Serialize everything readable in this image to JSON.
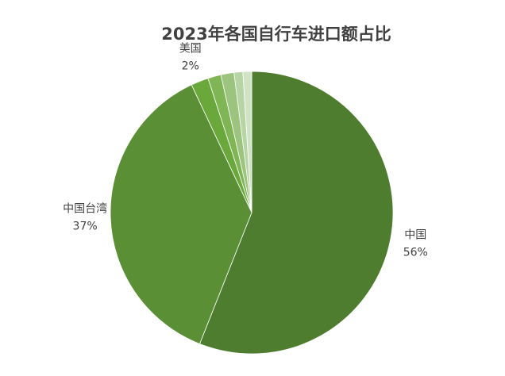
{
  "chart_data": {
    "type": "pie",
    "title": "2023年各国自行车进口额占比",
    "categories": [
      "中国",
      "中国台湾",
      "美国",
      null,
      null,
      null,
      null
    ],
    "values": [
      56,
      37,
      2,
      1.5,
      1.5,
      1,
      1
    ],
    "value_labels": [
      "56%",
      "37%",
      "2%",
      null,
      null,
      null,
      null
    ],
    "colors": [
      "#4e7d2f",
      "#5a8f35",
      "#6aa83b",
      "#80b556",
      "#9cc47f",
      "#b7d4a4",
      "#d0e3c5"
    ]
  }
}
